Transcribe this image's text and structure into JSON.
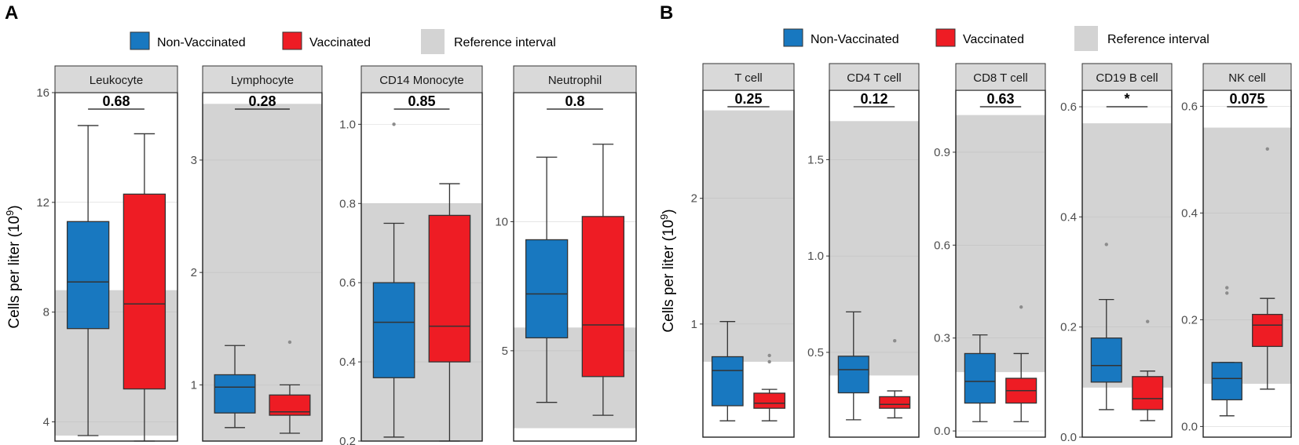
{
  "colors": {
    "non_vaccinated": "#1878c0",
    "vaccinated": "#ee1c24",
    "reference": "#d3d3d3",
    "strip": "#d9d9d9",
    "grid": "#e6e6e6",
    "outlier": "#8c8c8c"
  },
  "panels": [
    {
      "label": "A",
      "ylabel": "Cells per liter (10",
      "ylabel_sup": "9",
      "ylabel_close": ")",
      "legend": [
        {
          "key": "non_vaccinated",
          "label": "Non-Vaccinated"
        },
        {
          "key": "vaccinated",
          "label": "Vaccinated"
        },
        {
          "key": "reference",
          "label": "Reference interval"
        }
      ]
    },
    {
      "label": "B",
      "ylabel": "Cells per liter (10",
      "ylabel_sup": "9",
      "ylabel_close": ")",
      "legend": [
        {
          "key": "non_vaccinated",
          "label": "Non-Vaccinated"
        },
        {
          "key": "vaccinated",
          "label": "Vaccinated"
        },
        {
          "key": "reference",
          "label": "Reference interval"
        }
      ]
    }
  ],
  "chart_data": [
    {
      "type": "boxplot",
      "panel": "A",
      "title": "Leukocyte",
      "ylim": [
        3.3,
        16
      ],
      "ticks": [
        4,
        8,
        12,
        16
      ],
      "reference": [
        3.5,
        8.8
      ],
      "p_value": "0.68",
      "groups": [
        {
          "name": "Non-Vaccinated",
          "min": 3.5,
          "q1": 7.4,
          "median": 9.1,
          "q3": 11.3,
          "max": 14.8,
          "outliers": []
        },
        {
          "name": "Vaccinated",
          "min": 3.3,
          "q1": 5.2,
          "median": 8.3,
          "q3": 12.3,
          "max": 14.5,
          "outliers": []
        }
      ]
    },
    {
      "type": "boxplot",
      "panel": "A",
      "title": "Lymphocyte",
      "ylim": [
        0.5,
        3.6
      ],
      "ticks": [
        1,
        2,
        3
      ],
      "reference": [
        null,
        3.5
      ],
      "p_value": "0.28",
      "groups": [
        {
          "name": "Non-Vaccinated",
          "min": 0.62,
          "q1": 0.75,
          "median": 0.98,
          "q3": 1.09,
          "max": 1.35,
          "outliers": []
        },
        {
          "name": "Vaccinated",
          "min": 0.57,
          "q1": 0.73,
          "median": 0.76,
          "q3": 0.91,
          "max": 1.0,
          "outliers": [
            1.38
          ]
        }
      ]
    },
    {
      "type": "boxplot",
      "panel": "A",
      "title": "CD14 Monocyte",
      "ylim": [
        0.2,
        1.08
      ],
      "ticks": [
        0.2,
        0.4,
        0.6,
        0.8,
        1.0
      ],
      "tick_labels": [
        "0.2",
        "0.4",
        "0.6",
        "0.8",
        "1.0"
      ],
      "reference": [
        0.2,
        0.8
      ],
      "p_value": "0.85",
      "groups": [
        {
          "name": "Non-Vaccinated",
          "min": 0.21,
          "q1": 0.36,
          "median": 0.5,
          "q3": 0.6,
          "max": 0.75,
          "outliers": [
            1.0
          ]
        },
        {
          "name": "Vaccinated",
          "min": 0.2,
          "q1": 0.4,
          "median": 0.49,
          "q3": 0.77,
          "max": 0.85,
          "outliers": []
        }
      ]
    },
    {
      "type": "boxplot",
      "panel": "A",
      "title": "Neutrophil",
      "ylim": [
        1.5,
        15
      ],
      "ticks": [
        5,
        10
      ],
      "reference": [
        2.0,
        5.9
      ],
      "p_value": "0.8",
      "groups": [
        {
          "name": "Non-Vaccinated",
          "min": 3.0,
          "q1": 5.5,
          "median": 7.2,
          "q3": 9.3,
          "max": 12.5,
          "outliers": []
        },
        {
          "name": "Vaccinated",
          "min": 2.5,
          "q1": 4.0,
          "median": 6.0,
          "q3": 10.2,
          "max": 13.0,
          "outliers": []
        }
      ]
    },
    {
      "type": "boxplot",
      "panel": "B",
      "title": "T cell",
      "ylim": [
        0.1,
        2.86
      ],
      "ticks": [
        1,
        2
      ],
      "reference": [
        0.7,
        2.7
      ],
      "p_value": "0.25",
      "groups": [
        {
          "name": "Non-Vaccinated",
          "min": 0.23,
          "q1": 0.35,
          "median": 0.63,
          "q3": 0.74,
          "max": 1.02,
          "outliers": []
        },
        {
          "name": "Vaccinated",
          "min": 0.23,
          "q1": 0.33,
          "median": 0.37,
          "q3": 0.45,
          "max": 0.48,
          "outliers": [
            0.75,
            0.7
          ]
        }
      ]
    },
    {
      "type": "boxplot",
      "panel": "B",
      "title": "CD4 T cell",
      "ylim": [
        0.06,
        1.86
      ],
      "ticks": [
        0.5,
        1.0,
        1.5
      ],
      "tick_labels": [
        "0.5",
        "1.0",
        "1.5"
      ],
      "reference": [
        0.38,
        1.7
      ],
      "p_value": "0.12",
      "groups": [
        {
          "name": "Non-Vaccinated",
          "min": 0.15,
          "q1": 0.29,
          "median": 0.41,
          "q3": 0.48,
          "max": 0.71,
          "outliers": []
        },
        {
          "name": "Vaccinated",
          "min": 0.16,
          "q1": 0.21,
          "median": 0.23,
          "q3": 0.27,
          "max": 0.3,
          "outliers": [
            0.56
          ]
        }
      ]
    },
    {
      "type": "boxplot",
      "panel": "B",
      "title": "CD8 T cell",
      "ylim": [
        -0.02,
        1.1
      ],
      "ticks": [
        0.0,
        0.3,
        0.6,
        0.9
      ],
      "tick_labels": [
        "0.0",
        "0.3",
        "0.6",
        "0.9"
      ],
      "reference": [
        0.19,
        1.02
      ],
      "p_value": "0.63",
      "groups": [
        {
          "name": "Non-Vaccinated",
          "min": 0.03,
          "q1": 0.09,
          "median": 0.16,
          "q3": 0.25,
          "max": 0.31,
          "outliers": []
        },
        {
          "name": "Vaccinated",
          "min": 0.03,
          "q1": 0.09,
          "median": 0.13,
          "q3": 0.17,
          "max": 0.25,
          "outliers": [
            0.4
          ]
        }
      ]
    },
    {
      "type": "boxplot",
      "panel": "B",
      "title": "CD19 B cell",
      "ylim": [
        0.0,
        0.63
      ],
      "ticks": [
        0.0,
        0.2,
        0.4,
        0.6
      ],
      "tick_labels": [
        "0.0",
        "0.2",
        "0.4",
        "0.6"
      ],
      "reference": [
        0.09,
        0.57
      ],
      "p_value": "*",
      "groups": [
        {
          "name": "Non-Vaccinated",
          "min": 0.05,
          "q1": 0.1,
          "median": 0.13,
          "q3": 0.18,
          "max": 0.25,
          "outliers": [
            0.35
          ]
        },
        {
          "name": "Vaccinated",
          "min": 0.03,
          "q1": 0.05,
          "median": 0.07,
          "q3": 0.11,
          "max": 0.12,
          "outliers": [
            0.21
          ]
        }
      ]
    },
    {
      "type": "boxplot",
      "panel": "B",
      "title": "NK cell",
      "ylim": [
        -0.02,
        0.63
      ],
      "ticks": [
        0.0,
        0.2,
        0.4,
        0.6
      ],
      "tick_labels": [
        "0.0",
        "0.2",
        "0.4",
        "0.6"
      ],
      "reference": [
        0.08,
        0.56
      ],
      "p_value": "0.075",
      "groups": [
        {
          "name": "Non-Vaccinated",
          "min": 0.02,
          "q1": 0.05,
          "median": 0.09,
          "q3": 0.12,
          "max": 0.12,
          "outliers": [
            0.25,
            0.26
          ]
        },
        {
          "name": "Vaccinated",
          "min": 0.07,
          "q1": 0.15,
          "median": 0.19,
          "q3": 0.21,
          "max": 0.24,
          "outliers": [
            0.52
          ]
        }
      ]
    }
  ]
}
